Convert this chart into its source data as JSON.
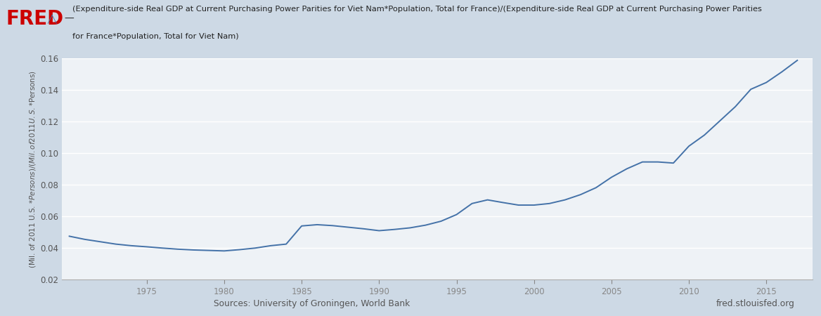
{
  "title_line1": "(Expenditure-side Real GDP at Current Purchasing Power Parities for Viet Nam*Population, Total for France)/(Expenditure-side Real GDP at Current Purchasing Power Parities",
  "title_line2": "for France*Population, Total for Viet Nam)",
  "ylabel": "(Mil. of 2011 U.S. $*Persons)/(Mil. of 2011 U.S. $*Persons)",
  "source_left": "Sources: University of Groningen, World Bank",
  "source_right": "fred.stlouisfed.org",
  "line_color": "#4472a8",
  "background_color": "#cdd9e5",
  "plot_background": "#eef2f6",
  "grid_color": "#ffffff",
  "ylim": [
    0.02,
    0.16
  ],
  "yticks": [
    0.02,
    0.04,
    0.06,
    0.08,
    0.1,
    0.12,
    0.14,
    0.16
  ],
  "xlim": [
    1969.5,
    2018.0
  ],
  "xtick_positions": [
    1975,
    1980,
    1985,
    1990,
    1995,
    2000,
    2005,
    2010,
    2015
  ],
  "years": [
    1970,
    1971,
    1972,
    1973,
    1974,
    1975,
    1976,
    1977,
    1978,
    1979,
    1980,
    1981,
    1982,
    1983,
    1984,
    1985,
    1986,
    1987,
    1988,
    1989,
    1990,
    1991,
    1992,
    1993,
    1994,
    1995,
    1996,
    1997,
    1998,
    1999,
    2000,
    2001,
    2002,
    2003,
    2004,
    2005,
    2006,
    2007,
    2008,
    2009,
    2010,
    2011,
    2012,
    2013,
    2014,
    2015,
    2016,
    2017
  ],
  "values": [
    0.0475,
    0.0455,
    0.044,
    0.0425,
    0.0415,
    0.0408,
    0.04,
    0.0393,
    0.0388,
    0.0385,
    0.0382,
    0.039,
    0.04,
    0.0415,
    0.0425,
    0.054,
    0.0548,
    0.0542,
    0.0532,
    0.0522,
    0.051,
    0.0518,
    0.0528,
    0.0545,
    0.057,
    0.0612,
    0.0682,
    0.0705,
    0.0688,
    0.0672,
    0.0672,
    0.0682,
    0.0705,
    0.0738,
    0.0782,
    0.0848,
    0.0902,
    0.0945,
    0.0945,
    0.0938,
    0.1045,
    0.1115,
    0.1205,
    0.1295,
    0.1405,
    0.1448,
    0.1515,
    0.1588
  ]
}
